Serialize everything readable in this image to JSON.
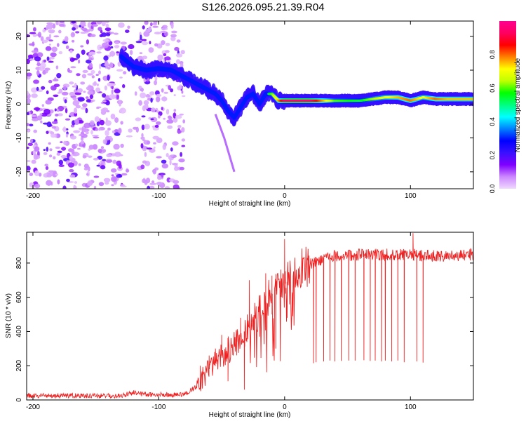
{
  "title": "S126.2026.095.21.39.R04",
  "chart_data": [
    {
      "type": "heatmap",
      "name": "spectrogram",
      "xlabel": "Height of straight line (km)",
      "ylabel": "Frequency (Hz)",
      "xlim": [
        -205,
        150
      ],
      "ylim": [
        -25,
        24.5
      ],
      "xticks": [
        -200,
        -100,
        0,
        100
      ],
      "yticks": [
        -20,
        -10,
        0,
        10,
        20
      ],
      "colorbar": {
        "label": "Normalized spectral amplitude",
        "range": [
          0,
          1
        ],
        "ticks": [
          "0.0",
          "0.2",
          "0.4",
          "0.6",
          "0.8"
        ],
        "stops": [
          "#f0d8ff",
          "#cc88ff",
          "#8000ff",
          "#3a10ff",
          "#0000ff",
          "#0080ff",
          "#00ffff",
          "#00ff80",
          "#00ff00",
          "#c0ff00",
          "#ffff00",
          "#ff8000",
          "#ff0000",
          "#ff0060",
          "#ff0090"
        ]
      },
      "noise_region_km": [
        -205,
        -80
      ],
      "gap_region_km": [
        -127,
        -115
      ],
      "ridge": {
        "x": [
          -130,
          -120,
          -110,
          -100,
          -90,
          -80,
          -70,
          -60,
          -55,
          -50,
          -45,
          -40,
          -35,
          -30,
          -25,
          -20,
          -15,
          -10,
          -5,
          0,
          10,
          20,
          40,
          60,
          80,
          90,
          100,
          110,
          120,
          130,
          150
        ],
        "freq": [
          14,
          11,
          10,
          10.5,
          10,
          8,
          6,
          4,
          3,
          1,
          -2,
          -4,
          -1,
          2,
          3,
          0,
          3,
          3,
          1,
          1,
          1,
          1,
          1,
          1,
          2,
          2,
          1,
          2,
          1.5,
          1.5,
          1.5
        ],
        "amplitude": [
          0.3,
          0.35,
          0.25,
          0.25,
          0.3,
          0.35,
          0.3,
          0.35,
          0.4,
          0.35,
          0.3,
          0.35,
          0.3,
          0.4,
          0.3,
          0.35,
          0.5,
          0.6,
          0.75,
          0.95,
          0.97,
          0.97,
          0.6,
          0.55,
          0.7,
          0.75,
          0.8,
          0.7,
          0.8,
          0.75,
          0.75
        ]
      }
    },
    {
      "type": "line",
      "name": "snr",
      "xlabel": "Height of straight line (km)",
      "ylabel": "SNR (10 * v/v)",
      "xlim": [
        -205,
        150
      ],
      "ylim": [
        0,
        980
      ],
      "xticks": [
        -200,
        -100,
        0,
        100
      ],
      "yticks": [
        0,
        200,
        400,
        600,
        800
      ],
      "color": "#ee2222",
      "envelope": {
        "x": [
          -205,
          -130,
          -120,
          -110,
          -80,
          -70,
          -60,
          -50,
          -40,
          -30,
          -20,
          -10,
          0,
          10,
          20,
          30,
          40,
          60,
          80,
          100,
          120,
          150
        ],
        "y": [
          25,
          25,
          45,
          30,
          30,
          80,
          180,
          260,
          320,
          420,
          520,
          620,
          680,
          730,
          790,
          820,
          840,
          850,
          850,
          850,
          840,
          850
        ]
      },
      "spikes": {
        "x": [
          -67,
          -60,
          -55,
          -50,
          -45,
          -38,
          -35,
          -32,
          -28,
          -20,
          -15,
          -10,
          -7,
          0,
          2,
          23,
          25,
          31,
          36,
          40,
          45,
          51,
          56,
          63,
          68,
          72,
          77,
          80,
          85,
          90,
          95,
          105,
          110
        ],
        "y": [
          200,
          260,
          300,
          380,
          110,
          370,
          480,
          60,
          700,
          420,
          740,
          500,
          300,
          940,
          480,
          215,
          220,
          225,
          230,
          225,
          228,
          230,
          230,
          232,
          228,
          230,
          225,
          230,
          225,
          230,
          220,
          225,
          218
        ]
      },
      "peaks": {
        "x": [
          8,
          12,
          18,
          102
        ],
        "y": [
          800,
          780,
          830,
          975
        ]
      }
    }
  ]
}
